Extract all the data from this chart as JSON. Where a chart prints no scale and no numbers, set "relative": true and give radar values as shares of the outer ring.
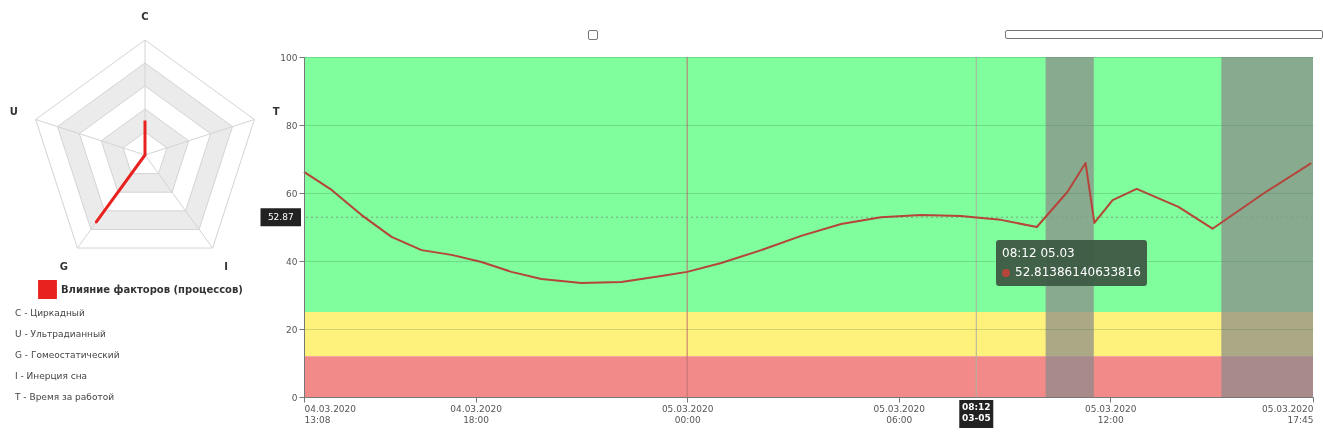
{
  "chart_data": [
    {
      "type": "radar",
      "categories": [
        "C",
        "T",
        "I",
        "G",
        "U"
      ],
      "relative": true,
      "legend": "bottom",
      "series": [
        {
          "name": "Влияние факторов (процессов)",
          "color": "#e8231f",
          "values": [
            0.3,
            0,
            0,
            0.72,
            0
          ]
        }
      ],
      "annotations": [
        "C  - Циркадный",
        "U  - Ультрадианный",
        "G  - Гомеостатический",
        "I   - Инерция сна",
        "T  - Время за работой"
      ]
    },
    {
      "type": "line",
      "color": "#b5443a",
      "grid": "y",
      "x": [
        "2020-03-04T13:08",
        "2020-03-04T13:55",
        "2020-03-04T14:46",
        "2020-03-04T15:37",
        "2020-03-04T16:28",
        "2020-03-04T17:19",
        "2020-03-04T18:10",
        "2020-03-04T19:01",
        "2020-03-04T19:52",
        "2020-03-04T21:00",
        "2020-03-04T22:08",
        "2020-03-04T23:16",
        "2020-03-05T00:00",
        "2020-03-05T00:58",
        "2020-03-05T02:06",
        "2020-03-05T03:14",
        "2020-03-05T04:22",
        "2020-03-05T05:30",
        "2020-03-05T06:38",
        "2020-03-05T07:46",
        "2020-03-05T08:12",
        "2020-03-05T08:54",
        "2020-03-05T09:55",
        "2020-03-05T10:47",
        "2020-03-05T11:18",
        "2020-03-05T11:33",
        "2020-03-05T12:04",
        "2020-03-05T12:45",
        "2020-03-05T13:56",
        "2020-03-05T14:54",
        "2020-03-05T16:22",
        "2020-03-05T17:42"
      ],
      "values": [
        66.2,
        60.9,
        53.5,
        47.1,
        43.2,
        41.8,
        39.7,
        36.8,
        34.7,
        33.5,
        33.8,
        35.6,
        36.8,
        39.4,
        43.2,
        47.4,
        50.9,
        52.9,
        53.5,
        53.2,
        52.8,
        52.1,
        50.0,
        60.3,
        68.8,
        51.2,
        57.9,
        61.2,
        55.9,
        49.5,
        60.0,
        68.8
      ],
      "xlim": [
        "2020-03-04T13:08",
        "2020-03-05T17:45"
      ],
      "xticks": [
        {
          "value": "2020-03-04T13:08",
          "label": "04.03.2020\n13:08"
        },
        {
          "value": "2020-03-04T18:00",
          "label": "04.03.2020\n18:00"
        },
        {
          "value": "2020-03-05T00:00",
          "label": "05.03.2020\n00:00"
        },
        {
          "value": "2020-03-05T06:00",
          "label": "05.03.2020\n06:00"
        },
        {
          "value": "2020-03-05T12:00",
          "label": "05.03.2020\n12:00"
        },
        {
          "value": "2020-03-05T17:45",
          "label": "05.03.2020\n17:45"
        }
      ],
      "ylim": [
        0,
        100
      ],
      "yticks": [
        0,
        20,
        40,
        60,
        80,
        100
      ],
      "bands": [
        {
          "axis": "y",
          "from": 25,
          "to": 100,
          "color": "#80fd9c"
        },
        {
          "axis": "y",
          "from": 12,
          "to": 25,
          "color": "#fff27c"
        },
        {
          "axis": "y",
          "from": 0,
          "to": 12,
          "color": "#f38a8a"
        },
        {
          "axis": "x",
          "from": "2020-03-05T10:10",
          "to": "2020-03-05T11:32",
          "color": "#8a8a8a"
        },
        {
          "axis": "x",
          "from": "2020-03-05T15:09",
          "to": "2020-03-05T17:45",
          "color": "#8a8a8a"
        }
      ],
      "ref_lines": [
        {
          "axis": "x",
          "value": "2020-03-05T00:00",
          "color": "#c07070"
        },
        {
          "axis": "x",
          "value": "2020-03-05T08:12",
          "label": "08:12\n03-05",
          "color": "#b0b0a0"
        },
        {
          "axis": "y",
          "value": 52.87,
          "label": "52.87",
          "color": "#7aa080",
          "line_style": "dotted"
        }
      ],
      "annotations": [
        "08:12 05.03",
        "52.81386140633816"
      ]
    }
  ]
}
